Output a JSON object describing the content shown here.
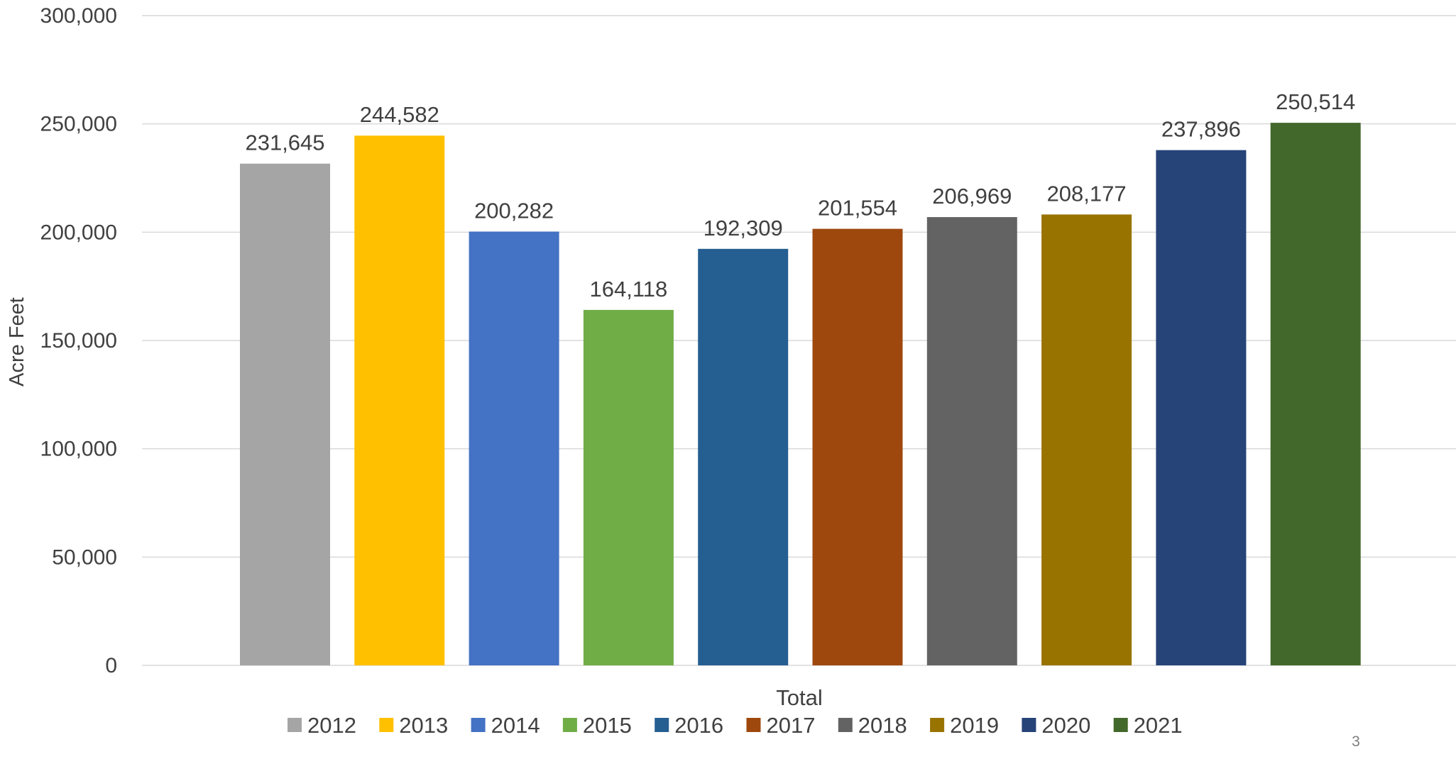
{
  "chart_data": {
    "type": "bar",
    "title": "",
    "xlabel": "",
    "ylabel": "Acre Feet",
    "category_label": "Total",
    "ylim": [
      0,
      300000
    ],
    "yticks": [
      0,
      50000,
      100000,
      150000,
      200000,
      250000,
      300000
    ],
    "ytick_labels": [
      "0",
      "50,000",
      "100,000",
      "150,000",
      "200,000",
      "250,000",
      "300,000"
    ],
    "grid": true,
    "legend_position": "bottom",
    "series": [
      {
        "name": "2012",
        "value": 231645,
        "label": "231,645",
        "color": "#a5a5a5"
      },
      {
        "name": "2013",
        "value": 244582,
        "label": "244,582",
        "color": "#ffc000"
      },
      {
        "name": "2014",
        "value": 200282,
        "label": "200,282",
        "color": "#4472c4"
      },
      {
        "name": "2015",
        "value": 164118,
        "label": "164,118",
        "color": "#70ad47"
      },
      {
        "name": "2016",
        "value": 192309,
        "label": "192,309",
        "color": "#255e91"
      },
      {
        "name": "2017",
        "value": 201554,
        "label": "201,554",
        "color": "#9e480e"
      },
      {
        "name": "2018",
        "value": 206969,
        "label": "206,969",
        "color": "#636363"
      },
      {
        "name": "2019",
        "value": 208177,
        "label": "208,177",
        "color": "#997300"
      },
      {
        "name": "2020",
        "value": 237896,
        "label": "237,896",
        "color": "#264478"
      },
      {
        "name": "2021",
        "value": 250514,
        "label": "250,514",
        "color": "#43682b"
      }
    ]
  },
  "page_number": "3"
}
